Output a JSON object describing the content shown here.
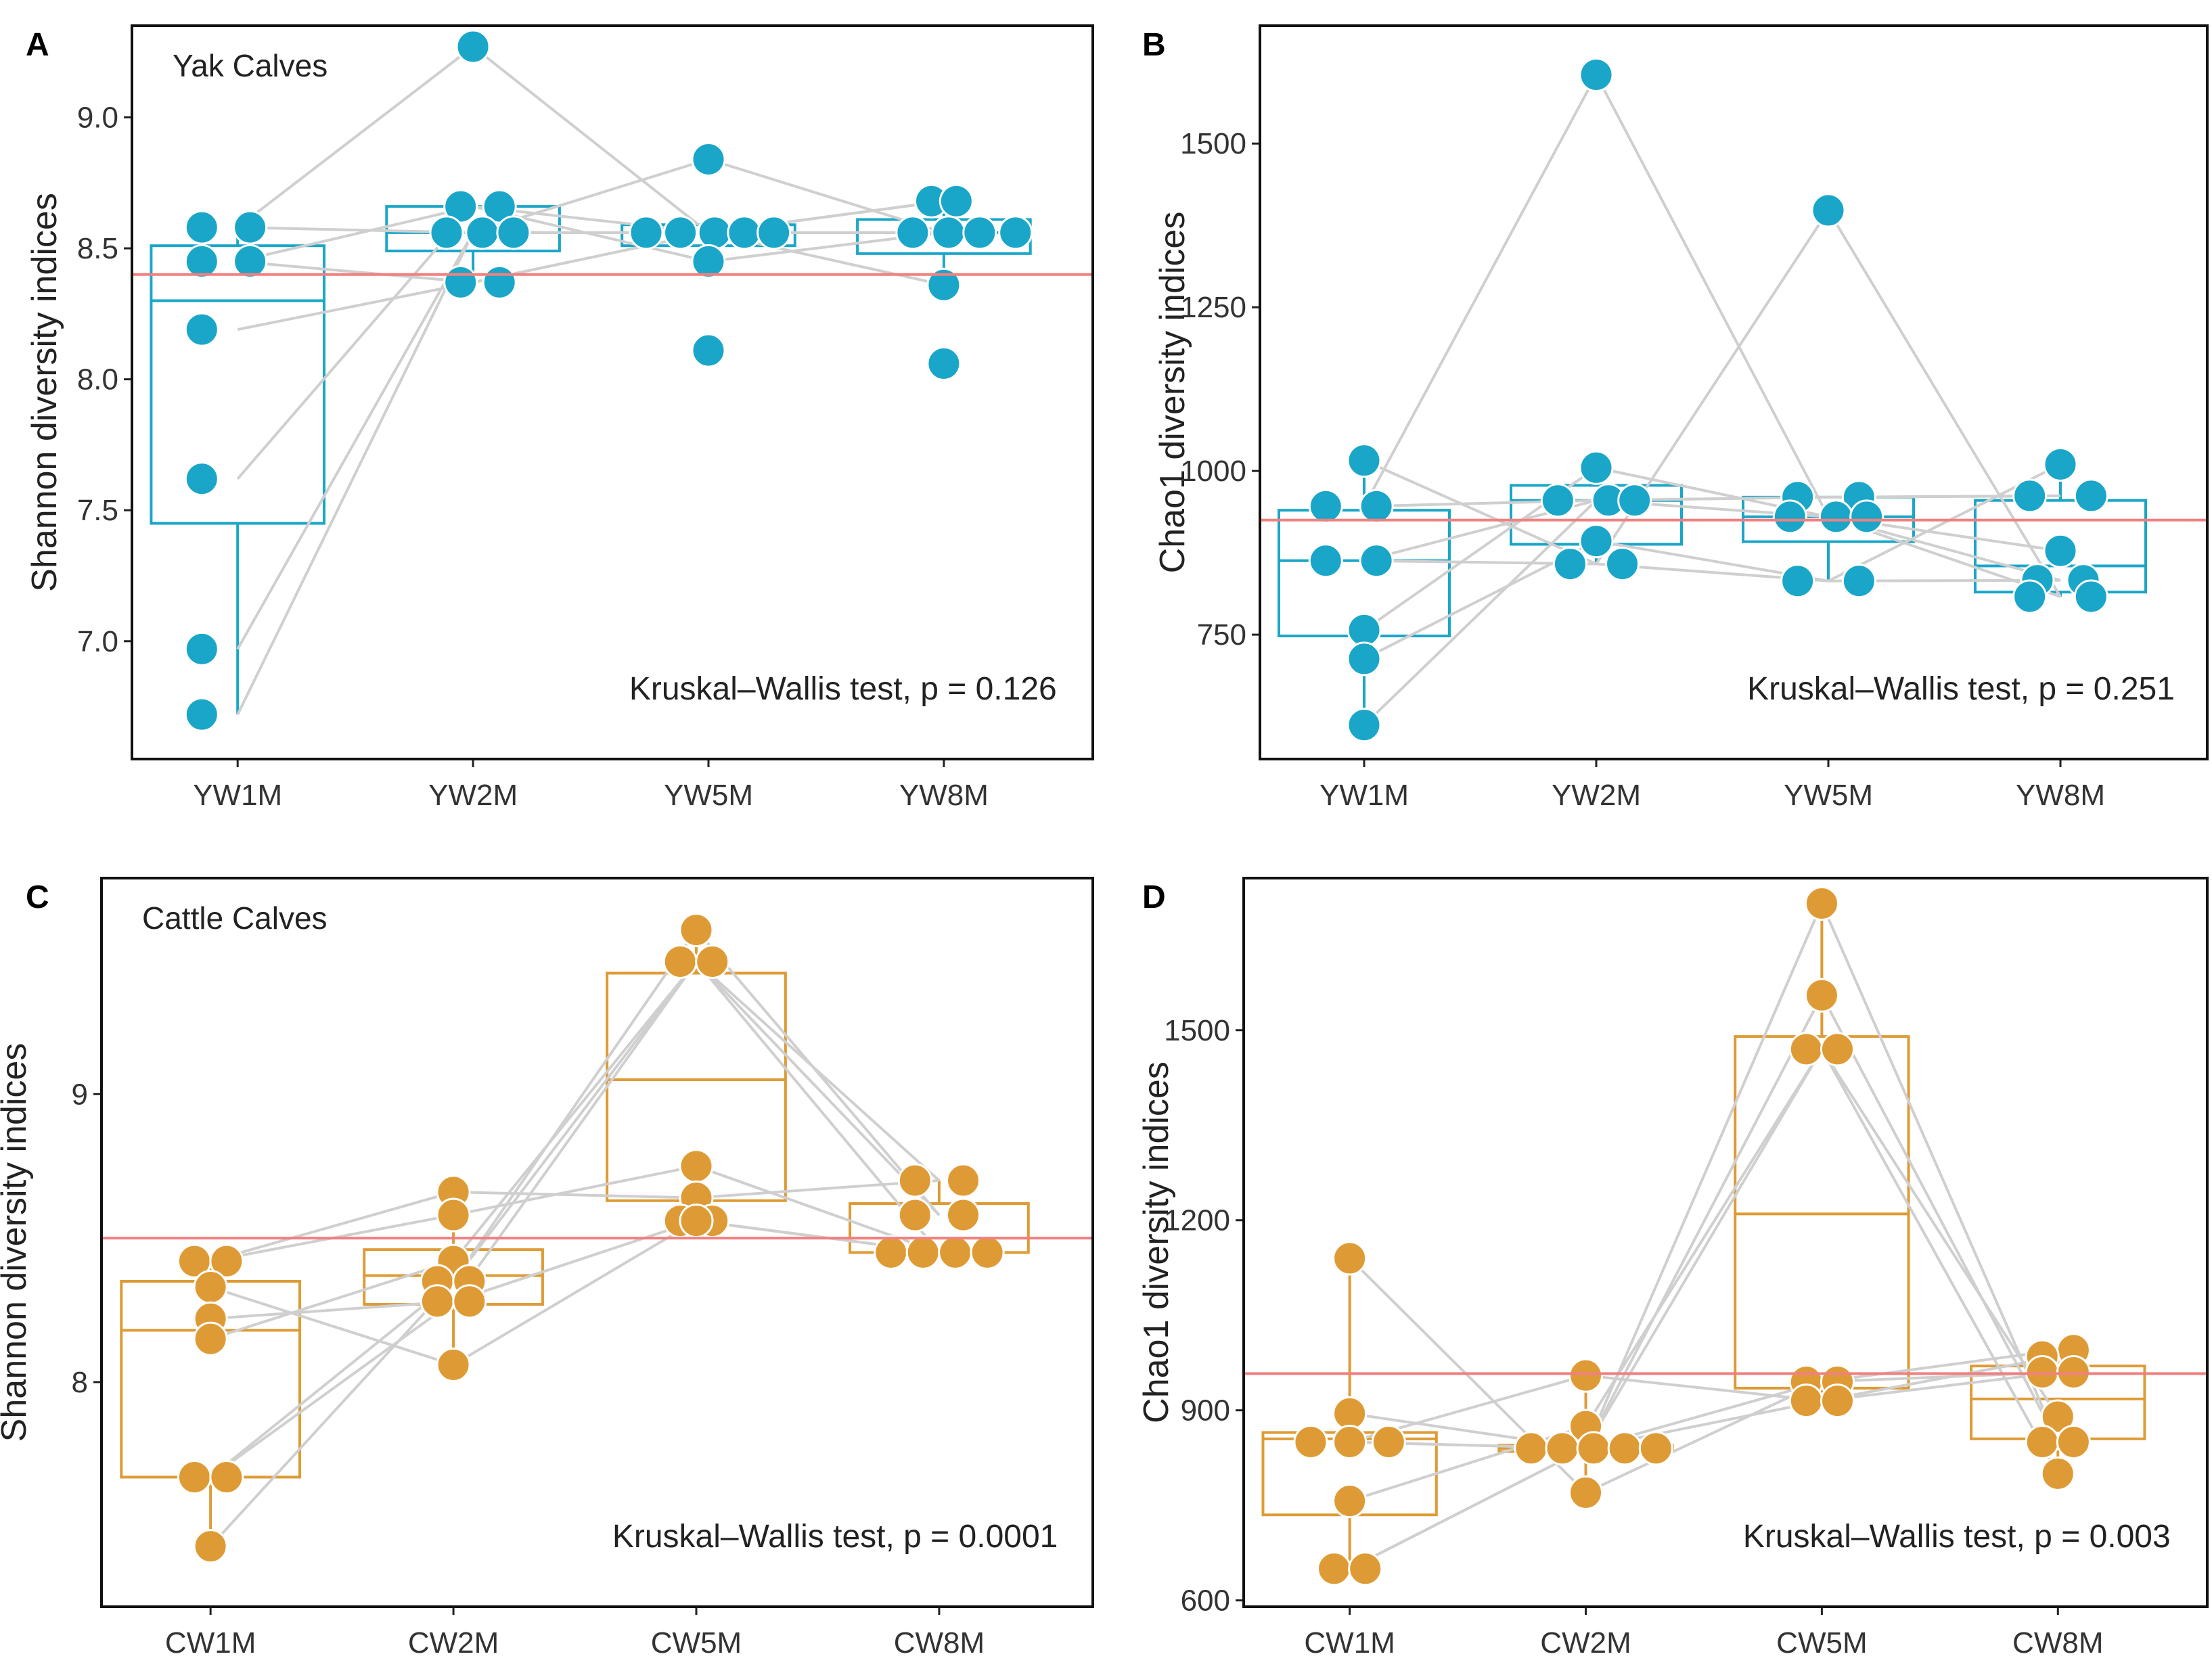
{
  "chart_data": [
    {
      "type": "box",
      "panel": "A",
      "title": "Yak Calves",
      "xlabel": "",
      "ylabel": "Shannon diversity indices",
      "ylim": [
        6.55,
        9.35
      ],
      "yticks": [
        7.0,
        7.5,
        8.0,
        8.5,
        9.0
      ],
      "ytick_labels": [
        "7.0",
        "7.5",
        "8.0",
        "8.5",
        "9.0"
      ],
      "categories": [
        "YW1M",
        "YW2M",
        "YW5M",
        "YW8M"
      ],
      "color": "#1aa6c8",
      "reference_line": 8.4,
      "reference_color": "#f08080",
      "annotation": "Kruskal–Wallis test, p = 0.126",
      "boxes": [
        {
          "q1": 7.45,
          "median": 8.3,
          "q3": 8.51,
          "whisker_low": 6.72,
          "whisker_high": 8.58
        },
        {
          "q1": 8.49,
          "median": 8.56,
          "q3": 8.66,
          "whisker_low": 8.37,
          "whisker_high": 8.66
        },
        {
          "q1": 8.51,
          "median": 8.56,
          "q3": 8.59,
          "whisker_low": 8.45,
          "whisker_high": 8.59
        },
        {
          "q1": 8.48,
          "median": 8.56,
          "q3": 8.61,
          "whisker_low": 8.36,
          "whisker_high": 8.68
        }
      ],
      "points": [
        [
          8.58,
          8.58,
          8.45,
          8.45,
          8.19,
          7.62,
          6.97,
          6.72
        ],
        [
          9.27,
          8.66,
          8.66,
          8.56,
          8.56,
          8.56,
          8.37,
          8.37
        ],
        [
          8.84,
          8.56,
          8.56,
          8.56,
          8.56,
          8.56,
          8.45,
          8.11
        ],
        [
          8.68,
          8.68,
          8.56,
          8.56,
          8.56,
          8.56,
          8.36,
          8.06
        ]
      ],
      "jitter": [
        [
          -0.23,
          0.08,
          -0.23,
          0.08,
          -0.23,
          -0.23,
          -0.23,
          -0.23
        ],
        [
          0,
          -0.08,
          0.17,
          -0.17,
          0.06,
          0.26,
          -0.08,
          0.17
        ],
        [
          0,
          -0.4,
          -0.18,
          0.04,
          0.23,
          0.42,
          0,
          0
        ],
        [
          -0.08,
          0.08,
          -0.2,
          0.03,
          0.23,
          0.46,
          0,
          0
        ]
      ],
      "paths": [
        [
          6.72,
          8.56,
          8.56,
          8.56
        ],
        [
          6.97,
          8.56,
          8.56,
          8.68
        ],
        [
          7.62,
          8.66,
          8.45,
          8.56
        ],
        [
          8.19,
          8.37,
          8.56,
          8.56
        ],
        [
          8.45,
          8.37,
          8.56,
          8.36
        ],
        [
          8.45,
          8.66,
          8.56,
          8.68
        ],
        [
          8.58,
          9.27,
          8.56,
          8.56
        ],
        [
          8.58,
          8.56,
          8.84,
          8.56
        ]
      ]
    },
    {
      "type": "box",
      "panel": "B",
      "title": "",
      "xlabel": "",
      "ylabel": "Chao1 diversity indices",
      "ylim": [
        560,
        1680
      ],
      "yticks": [
        750,
        1000,
        1250,
        1500
      ],
      "ytick_labels": [
        "750",
        "1000",
        "1250",
        "1500"
      ],
      "categories": [
        "YW1M",
        "YW2M",
        "YW5M",
        "YW8M"
      ],
      "color": "#1aa6c8",
      "reference_line": 925,
      "reference_color": "#f08080",
      "annotation": "Kruskal–Wallis test, p = 0.251",
      "boxes": [
        {
          "q1": 748,
          "median": 863,
          "q3": 940,
          "whisker_low": 612,
          "whisker_high": 1016
        },
        {
          "q1": 888,
          "median": 955,
          "q3": 978,
          "whisker_low": 858,
          "whisker_high": 1005
        },
        {
          "q1": 892,
          "median": 930,
          "q3": 960,
          "whisker_low": 832,
          "whisker_high": 960
        },
        {
          "q1": 815,
          "median": 855,
          "q3": 955,
          "whisker_low": 808,
          "whisker_high": 1010
        }
      ],
      "points": [
        [
          1016,
          946,
          946,
          863,
          863,
          757,
          713,
          612
        ],
        [
          1605,
          1005,
          955,
          955,
          955,
          893,
          858,
          858
        ],
        [
          1398,
          960,
          960,
          930,
          930,
          930,
          832,
          832
        ],
        [
          1010,
          962,
          962,
          878,
          833,
          833,
          808,
          808
        ]
      ],
      "jitter": [
        [
          0,
          -0.25,
          0.08,
          -0.25,
          0.08,
          0,
          0,
          0
        ],
        [
          0,
          0,
          -0.25,
          0.08,
          0.25,
          0,
          -0.17,
          0.17
        ],
        [
          0,
          -0.2,
          0.2,
          -0.25,
          0.05,
          0.25,
          -0.2,
          0.2
        ],
        [
          0,
          -0.2,
          0.2,
          0,
          -0.15,
          0.15,
          -0.2,
          0.2
        ]
      ],
      "paths": [
        [
          612,
          955,
          930,
          833
        ],
        [
          713,
          893,
          832,
          833
        ],
        [
          757,
          1005,
          930,
          808
        ],
        [
          863,
          858,
          1398,
          808
        ],
        [
          863,
          955,
          960,
          962
        ],
        [
          946,
          1605,
          930,
          878
        ],
        [
          946,
          955,
          960,
          962
        ],
        [
          1016,
          858,
          832,
          1010
        ]
      ]
    },
    {
      "type": "box",
      "panel": "C",
      "title": "Cattle Calves",
      "xlabel": "",
      "ylabel": "Shannon diversity indices",
      "ylim": [
        7.22,
        9.75
      ],
      "yticks": [
        8,
        9
      ],
      "ytick_labels": [
        "8",
        "9"
      ],
      "categories": [
        "CW1M",
        "CW2M",
        "CW5M",
        "CW8M"
      ],
      "color": "#de9b35",
      "reference_line": 8.5,
      "reference_color": "#f08080",
      "annotation": "Kruskal–Wallis test, p = 0.0001",
      "boxes": [
        {
          "q1": 7.67,
          "median": 8.18,
          "q3": 8.35,
          "whisker_low": 7.43,
          "whisker_high": 8.42
        },
        {
          "q1": 8.27,
          "median": 8.37,
          "q3": 8.46,
          "whisker_low": 8.06,
          "whisker_high": 8.66
        },
        {
          "q1": 8.63,
          "median": 9.05,
          "q3": 9.42,
          "whisker_low": 8.56,
          "whisker_high": 9.57
        },
        {
          "q1": 8.45,
          "median": 8.5,
          "q3": 8.62,
          "whisker_low": 8.45,
          "whisker_high": 8.7
        }
      ],
      "points": [
        [
          8.42,
          8.42,
          8.33,
          8.22,
          8.15,
          7.67,
          7.67,
          7.43
        ],
        [
          8.66,
          8.58,
          8.42,
          8.35,
          8.35,
          8.28,
          8.28,
          8.06
        ],
        [
          9.57,
          9.46,
          9.46,
          8.75,
          8.64,
          8.56,
          8.56,
          8.56
        ],
        [
          8.7,
          8.7,
          8.58,
          8.58,
          8.45,
          8.45,
          8.45,
          8.45
        ]
      ],
      "jitter": [
        [
          -0.1,
          0.1,
          0,
          0,
          0,
          -0.1,
          0.1,
          0
        ],
        [
          0,
          0,
          0,
          -0.1,
          0.1,
          -0.1,
          0.1,
          0
        ],
        [
          0,
          -0.1,
          0.1,
          0,
          0,
          -0.1,
          0.1,
          0
        ],
        [
          -0.15,
          0.15,
          -0.15,
          0.15,
          -0.3,
          -0.1,
          0.1,
          0.3
        ]
      ],
      "paths": [
        [
          7.43,
          8.35,
          9.46,
          8.7
        ],
        [
          7.67,
          8.28,
          9.46,
          8.58
        ],
        [
          7.67,
          8.35,
          9.57,
          8.58
        ],
        [
          8.15,
          8.42,
          9.46,
          8.45
        ],
        [
          8.22,
          8.28,
          8.56,
          8.45
        ],
        [
          8.33,
          8.06,
          8.56,
          8.45
        ],
        [
          8.42,
          8.58,
          8.75,
          8.45
        ],
        [
          8.42,
          8.66,
          8.64,
          8.7
        ]
      ]
    },
    {
      "type": "box",
      "panel": "D",
      "title": "",
      "xlabel": "",
      "ylabel": "Chao1 diversity indices",
      "ylim": [
        590,
        1740
      ],
      "yticks": [
        600,
        900,
        1200,
        1500
      ],
      "ytick_labels": [
        "600",
        "900",
        "1200",
        "1500"
      ],
      "categories": [
        "CW1M",
        "CW2M",
        "CW5M",
        "CW8M"
      ],
      "color": "#de9b35",
      "reference_line": 958,
      "reference_color": "#f08080",
      "annotation": "Kruskal–Wallis test, p = 0.003",
      "boxes": [
        {
          "q1": 735,
          "median": 855,
          "q3": 865,
          "whisker_low": 650,
          "whisker_high": 1140
        },
        {
          "q1": 835,
          "median": 840,
          "q3": 845,
          "whisker_low": 770,
          "whisker_high": 955
        },
        {
          "q1": 935,
          "median": 1210,
          "q3": 1490,
          "whisker_low": 915,
          "whisker_high": 1700
        },
        {
          "q1": 855,
          "median": 918,
          "q3": 970,
          "whisker_low": 800,
          "whisker_high": 995
        }
      ],
      "points": [
        [
          1140,
          895,
          850,
          850,
          850,
          757,
          650,
          650
        ],
        [
          955,
          875,
          840,
          840,
          840,
          840,
          840,
          770
        ],
        [
          1700,
          1555,
          1470,
          1470,
          945,
          945,
          915,
          915
        ],
        [
          995,
          985,
          960,
          960,
          890,
          850,
          850,
          800
        ]
      ],
      "jitter": [
        [
          0,
          0,
          -0.25,
          0,
          0.25,
          0,
          -0.1,
          0.1
        ],
        [
          0,
          0,
          -0.35,
          -0.15,
          0.05,
          0.25,
          0.45,
          0
        ],
        [
          0,
          0,
          -0.1,
          0.1,
          -0.1,
          0.1,
          -0.1,
          0.1
        ],
        [
          0.1,
          -0.1,
          -0.1,
          0.1,
          0,
          -0.1,
          0.1,
          0
        ]
      ],
      "paths": [
        [
          650,
          840,
          1555,
          850
        ],
        [
          650,
          840,
          1470,
          890
        ],
        [
          757,
          875,
          1470,
          800
        ],
        [
          850,
          840,
          1700,
          850
        ],
        [
          850,
          840,
          945,
          960
        ],
        [
          895,
          840,
          915,
          985
        ],
        [
          850,
          955,
          915,
          960
        ],
        [
          1140,
          770,
          945,
          995
        ]
      ]
    }
  ]
}
